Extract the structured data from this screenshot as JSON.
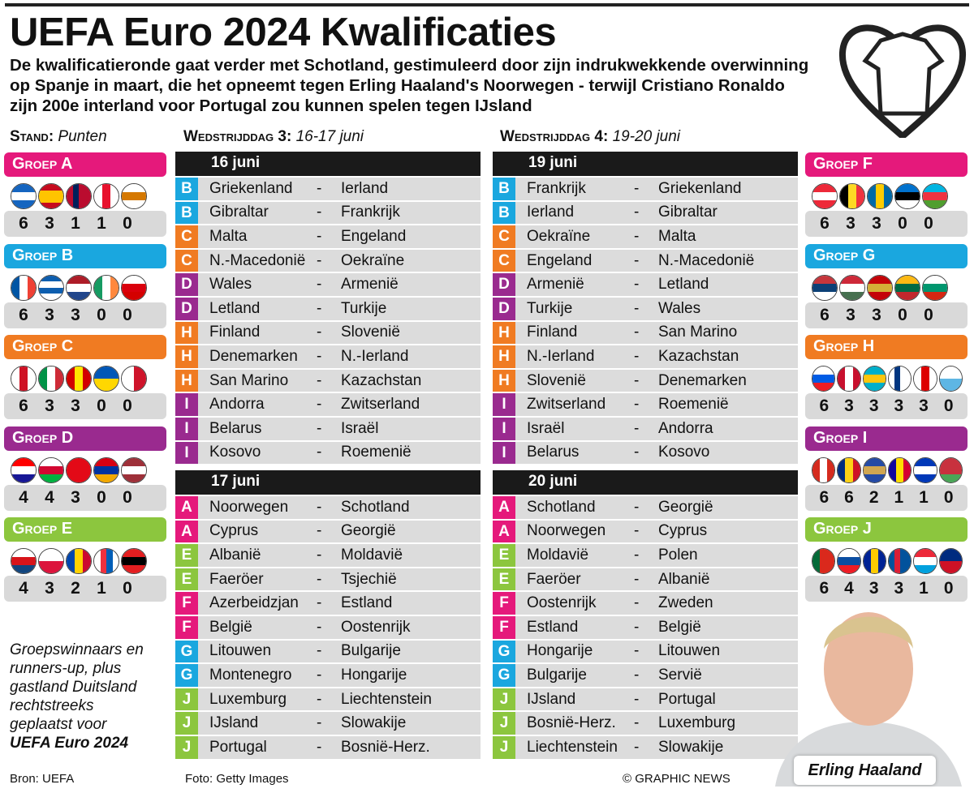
{
  "title": "UEFA Euro 2024 Kwalificaties",
  "subtitle": "De kwalificatieronde gaat verder met Schotland, gestimuleerd door zijn indrukwekkende overwinning op Spanje in maart, die het opneemt tegen Erling Haaland's Noorwegen - terwijl Cristiano Ronaldo zijn 200e interland voor Portugal zou kunnen spelen tegen IJsland",
  "stand": {
    "label": "Stand:",
    "sub": "Punten"
  },
  "md3": {
    "label": "Wedstrijddag 3:",
    "sub": "16-17 juni"
  },
  "md4": {
    "label": "Wedstrijddag 4:",
    "sub": "19-20 juni"
  },
  "colors": {
    "A": "#e5197b",
    "B": "#1aa7df",
    "C": "#f07b22",
    "D": "#9a2a8f",
    "E": "#8cc63e",
    "F": "#e5197b",
    "G": "#1aa7df",
    "H": "#f07b22",
    "I": "#9a2a8f",
    "J": "#8cc63e"
  },
  "groups": [
    {
      "id": "A",
      "label": "Groep A",
      "flags": [
        [
          "h",
          "#1565c0",
          "#ffffff",
          "#1565c0"
        ],
        [
          "h",
          "#c60b1e",
          "#ffc400",
          "#ffc400",
          "#c60b1e"
        ],
        [
          "v",
          "#ba0c2f",
          "#00205b",
          "#ba0c2f",
          "#ba0c2f"
        ],
        [
          "v",
          "#fff",
          "#e8112d",
          "#fff"
        ],
        [
          "h",
          "#fff",
          "#d57800",
          "#fff"
        ]
      ],
      "points": [
        6,
        3,
        1,
        1,
        0
      ]
    },
    {
      "id": "B",
      "label": "Groep B",
      "flags": [
        [
          "v",
          "#0055a4",
          "#fff",
          "#ef4135"
        ],
        [
          "h",
          "#0d5eaf",
          "#fff",
          "#0d5eaf",
          "#fff"
        ],
        [
          "h",
          "#ae1c28",
          "#fff",
          "#21468b"
        ],
        [
          "v",
          "#169b62",
          "#fff",
          "#ff883e"
        ],
        [
          "h",
          "#fff",
          "#da000c",
          "#d40000"
        ]
      ],
      "points": [
        6,
        3,
        3,
        0,
        0
      ]
    },
    {
      "id": "C",
      "label": "Groep C",
      "flags": [
        [
          "v",
          "#fff",
          "#ce1124",
          "#fff"
        ],
        [
          "v",
          "#009246",
          "#fff",
          "#ce2b37"
        ],
        [
          "v",
          "#d20000",
          "#ffe600",
          "#d20000"
        ],
        [
          "h",
          "#0057b7",
          "#ffd700"
        ],
        [
          "v",
          "#fff",
          "#cf142b"
        ]
      ],
      "points": [
        6,
        3,
        3,
        0,
        0
      ]
    },
    {
      "id": "D",
      "label": "Groep D",
      "flags": [
        [
          "h",
          "#ff0000",
          "#fff",
          "#171796"
        ],
        [
          "h",
          "#fff",
          "#d30731",
          "#00b140"
        ],
        [
          "h",
          "#e30a17",
          "#e30a17"
        ],
        [
          "h",
          "#d90012",
          "#0033a0",
          "#f2a800"
        ],
        [
          "h",
          "#9e3039",
          "#fff",
          "#9e3039"
        ]
      ],
      "points": [
        4,
        4,
        3,
        0,
        0
      ]
    },
    {
      "id": "E",
      "label": "Groep E",
      "flags": [
        [
          "h",
          "#fff",
          "#d7141a",
          "#11457e"
        ],
        [
          "h",
          "#fff",
          "#dc143c"
        ],
        [
          "v",
          "#0046ae",
          "#ffd200",
          "#cc092f"
        ],
        [
          "v",
          "#fff",
          "#ef303e",
          "#005eb8",
          "#fff"
        ],
        [
          "h",
          "#e41e20",
          "#000",
          "#e41e20"
        ]
      ],
      "points": [
        4,
        3,
        2,
        1,
        0
      ]
    },
    {
      "id": "F",
      "label": "Groep F",
      "flags": [
        [
          "h",
          "#ed2939",
          "#fff",
          "#ed2939"
        ],
        [
          "v",
          "#000",
          "#fdda24",
          "#ef3340"
        ],
        [
          "v",
          "#006aa7",
          "#fecc00",
          "#006aa7"
        ],
        [
          "h",
          "#0072ce",
          "#000",
          "#fff"
        ],
        [
          "h",
          "#00b5e2",
          "#ef3340",
          "#509e2f"
        ]
      ],
      "points": [
        6,
        3,
        3,
        0,
        0
      ]
    },
    {
      "id": "G",
      "label": "Groep G",
      "flags": [
        [
          "h",
          "#c6363c",
          "#0c4076",
          "#fff"
        ],
        [
          "h",
          "#ce2939",
          "#fff",
          "#477050"
        ],
        [
          "h",
          "#c40308",
          "#d4af37",
          "#c40308"
        ],
        [
          "h",
          "#fdb913",
          "#006a44",
          "#c1272d"
        ],
        [
          "h",
          "#fff",
          "#00966e",
          "#d62612"
        ]
      ],
      "points": [
        6,
        3,
        3,
        0,
        0
      ]
    },
    {
      "id": "H",
      "label": "Groep H",
      "flags": [
        [
          "h",
          "#fff",
          "#005ce5",
          "#ed1c24"
        ],
        [
          "v",
          "#c8102e",
          "#fff",
          "#c8102e"
        ],
        [
          "h",
          "#00afca",
          "#fec50c",
          "#00afca"
        ],
        [
          "v",
          "#fff",
          "#003580",
          "#fff",
          "#fff"
        ],
        [
          "v",
          "#fff",
          "#d00",
          "#fff"
        ],
        [
          "h",
          "#fff",
          "#5eb6e4"
        ]
      ],
      "points": [
        6,
        3,
        3,
        3,
        3,
        0
      ]
    },
    {
      "id": "I",
      "label": "Groep I",
      "flags": [
        [
          "v",
          "#d52b1e",
          "#fff",
          "#d52b1e"
        ],
        [
          "v",
          "#002b7f",
          "#fcd116",
          "#ce1126"
        ],
        [
          "h",
          "#244aa5",
          "#d0a650",
          "#244aa5"
        ],
        [
          "v",
          "#10069f",
          "#fedd00",
          "#d50032"
        ],
        [
          "h",
          "#0038b8",
          "#fff",
          "#0038b8"
        ],
        [
          "h",
          "#c8313e",
          "#c8313e",
          "#4aa657"
        ]
      ],
      "points": [
        6,
        6,
        2,
        1,
        1,
        0
      ]
    },
    {
      "id": "J",
      "label": "Groep J",
      "flags": [
        [
          "v",
          "#046a38",
          "#da291c",
          "#da291c"
        ],
        [
          "h",
          "#fff",
          "#0b4ea2",
          "#ee1c25"
        ],
        [
          "v",
          "#002395",
          "#fecb00",
          "#002395"
        ],
        [
          "v",
          "#02529c",
          "#dc1e35",
          "#02529c",
          "#02529c"
        ],
        [
          "h",
          "#ed2939",
          "#fff",
          "#00a1de"
        ],
        [
          "h",
          "#002b7f",
          "#ce1126"
        ]
      ],
      "points": [
        6,
        4,
        3,
        3,
        1,
        0
      ]
    }
  ],
  "days": [
    {
      "date": "16 juni",
      "matches": [
        [
          "B",
          "Griekenland",
          "Ierland"
        ],
        [
          "B",
          "Gibraltar",
          "Frankrijk"
        ],
        [
          "C",
          "Malta",
          "Engeland"
        ],
        [
          "C",
          "N.-Macedonië",
          "Oekraïne"
        ],
        [
          "D",
          "Wales",
          "Armenië"
        ],
        [
          "D",
          "Letland",
          "Turkije"
        ],
        [
          "H",
          "Finland",
          "Slovenië"
        ],
        [
          "H",
          "Denemarken",
          "N.-Ierland"
        ],
        [
          "H",
          "San Marino",
          "Kazachstan"
        ],
        [
          "I",
          "Andorra",
          "Zwitserland"
        ],
        [
          "I",
          "Belarus",
          "Israël"
        ],
        [
          "I",
          "Kosovo",
          "Roemenië"
        ]
      ]
    },
    {
      "date": "17 juni",
      "matches": [
        [
          "A",
          "Noorwegen",
          "Schotland"
        ],
        [
          "A",
          "Cyprus",
          "Georgië"
        ],
        [
          "E",
          "Albanië",
          "Moldavië"
        ],
        [
          "E",
          "Faeröer",
          "Tsjechië"
        ],
        [
          "F",
          "Azerbeidzjan",
          "Estland"
        ],
        [
          "F",
          "België",
          "Oostenrijk"
        ],
        [
          "G",
          "Litouwen",
          "Bulgarije"
        ],
        [
          "G",
          "Montenegro",
          "Hongarije"
        ],
        [
          "J",
          "Luxemburg",
          "Liechtenstein"
        ],
        [
          "J",
          "IJsland",
          "Slowakije"
        ],
        [
          "J",
          "Portugal",
          "Bosnië-Herz."
        ]
      ]
    },
    {
      "date": "19 juni",
      "matches": [
        [
          "B",
          "Frankrijk",
          "Griekenland"
        ],
        [
          "B",
          "Ierland",
          "Gibraltar"
        ],
        [
          "C",
          "Oekraïne",
          "Malta"
        ],
        [
          "C",
          "Engeland",
          "N.-Macedonië"
        ],
        [
          "D",
          "Armenië",
          "Letland"
        ],
        [
          "D",
          "Turkije",
          "Wales"
        ],
        [
          "H",
          "Finland",
          "San Marino"
        ],
        [
          "H",
          "N.-Ierland",
          "Kazachstan"
        ],
        [
          "H",
          "Slovenië",
          "Denemarken"
        ],
        [
          "I",
          "Zwitserland",
          "Roemenië"
        ],
        [
          "I",
          "Israël",
          "Andorra"
        ],
        [
          "I",
          "Belarus",
          "Kosovo"
        ]
      ]
    },
    {
      "date": "20 juni",
      "matches": [
        [
          "A",
          "Schotland",
          "Georgië"
        ],
        [
          "A",
          "Noorwegen",
          "Cyprus"
        ],
        [
          "E",
          "Moldavië",
          "Polen"
        ],
        [
          "E",
          "Faeröer",
          "Albanië"
        ],
        [
          "F",
          "Oostenrijk",
          "Zweden"
        ],
        [
          "F",
          "Estland",
          "België"
        ],
        [
          "G",
          "Hongarije",
          "Litouwen"
        ],
        [
          "G",
          "Bulgarije",
          "Servië"
        ],
        [
          "J",
          "IJsland",
          "Portugal"
        ],
        [
          "J",
          "Bosnië-Herz.",
          "Luxemburg"
        ],
        [
          "J",
          "Liechtenstein",
          "Slowakije"
        ]
      ]
    }
  ],
  "note": {
    "text": "Groepswinnaars en runners-up, plus gastland Duitsland rechtstreeks geplaatst voor",
    "bold": "UEFA Euro 2024"
  },
  "photo_caption": "Erling Haaland",
  "footer": {
    "source": "Bron: UEFA",
    "photo": "Foto: Getty Images",
    "credit": "© GRAPHIC NEWS"
  }
}
